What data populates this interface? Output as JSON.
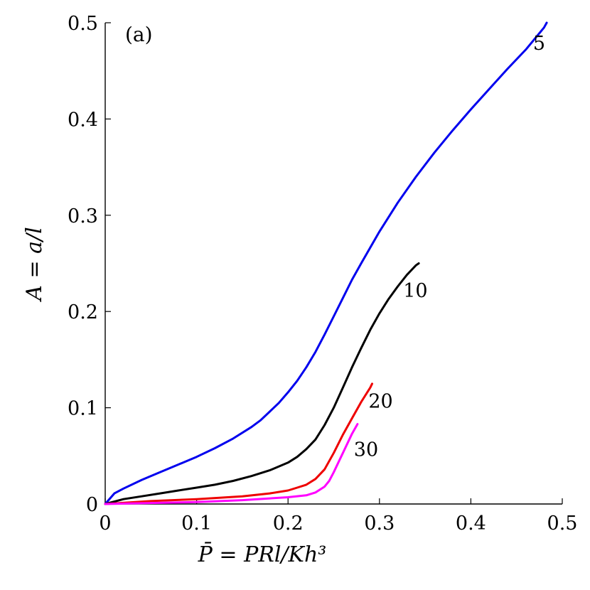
{
  "chart_data": {
    "type": "line",
    "panel_label": "(a)",
    "xlabel": "P̄ = PRl/Kh³",
    "ylabel": "A = a/l",
    "xlim": [
      0,
      0.5
    ],
    "ylim": [
      0,
      0.5
    ],
    "xticks": [
      0,
      0.1,
      0.2,
      0.3,
      0.4,
      0.5
    ],
    "yticks": [
      0,
      0.1,
      0.2,
      0.3,
      0.4,
      0.5
    ],
    "xtick_labels": [
      "0",
      "0.1",
      "0.2",
      "0.3",
      "0.4",
      "0.5"
    ],
    "ytick_labels": [
      "0",
      "0.1",
      "0.2",
      "0.3",
      "0.4",
      "0.5"
    ],
    "grid": false,
    "series": [
      {
        "name": "5",
        "color": "#0000ee",
        "x": [
          0,
          0.01,
          0.02,
          0.04,
          0.06,
          0.08,
          0.1,
          0.12,
          0.14,
          0.16,
          0.17,
          0.18,
          0.19,
          0.2,
          0.21,
          0.22,
          0.23,
          0.24,
          0.25,
          0.26,
          0.27,
          0.28,
          0.3,
          0.32,
          0.34,
          0.36,
          0.38,
          0.4,
          0.42,
          0.44,
          0.46,
          0.48,
          0.483
        ],
        "y": [
          0,
          0.011,
          0.016,
          0.025,
          0.033,
          0.041,
          0.049,
          0.058,
          0.068,
          0.08,
          0.087,
          0.096,
          0.105,
          0.116,
          0.128,
          0.142,
          0.158,
          0.176,
          0.195,
          0.214,
          0.233,
          0.25,
          0.283,
          0.313,
          0.34,
          0.365,
          0.388,
          0.41,
          0.431,
          0.452,
          0.472,
          0.495,
          0.5
        ]
      },
      {
        "name": "10",
        "color": "#000000",
        "x": [
          0,
          0.02,
          0.04,
          0.06,
          0.08,
          0.1,
          0.12,
          0.14,
          0.16,
          0.18,
          0.2,
          0.21,
          0.22,
          0.23,
          0.24,
          0.25,
          0.26,
          0.27,
          0.28,
          0.29,
          0.3,
          0.31,
          0.32,
          0.33,
          0.34,
          0.343
        ],
        "y": [
          0,
          0.005,
          0.008,
          0.011,
          0.014,
          0.017,
          0.02,
          0.024,
          0.029,
          0.035,
          0.043,
          0.049,
          0.057,
          0.067,
          0.082,
          0.1,
          0.121,
          0.142,
          0.162,
          0.181,
          0.198,
          0.213,
          0.226,
          0.238,
          0.248,
          0.25
        ]
      },
      {
        "name": "20",
        "color": "#ee0000",
        "x": [
          0,
          0.05,
          0.1,
          0.15,
          0.18,
          0.2,
          0.21,
          0.22,
          0.23,
          0.24,
          0.25,
          0.26,
          0.27,
          0.28,
          0.29,
          0.292
        ],
        "y": [
          0,
          0.003,
          0.005,
          0.008,
          0.011,
          0.014,
          0.017,
          0.02,
          0.026,
          0.036,
          0.053,
          0.072,
          0.089,
          0.106,
          0.121,
          0.125
        ]
      },
      {
        "name": "30",
        "color": "#ff00ff",
        "x": [
          0,
          0.05,
          0.1,
          0.15,
          0.2,
          0.22,
          0.23,
          0.24,
          0.245,
          0.25,
          0.255,
          0.26,
          0.265,
          0.27,
          0.276
        ],
        "y": [
          0,
          0.001,
          0.002,
          0.004,
          0.007,
          0.009,
          0.012,
          0.018,
          0.024,
          0.033,
          0.043,
          0.053,
          0.063,
          0.073,
          0.083
        ]
      }
    ]
  }
}
